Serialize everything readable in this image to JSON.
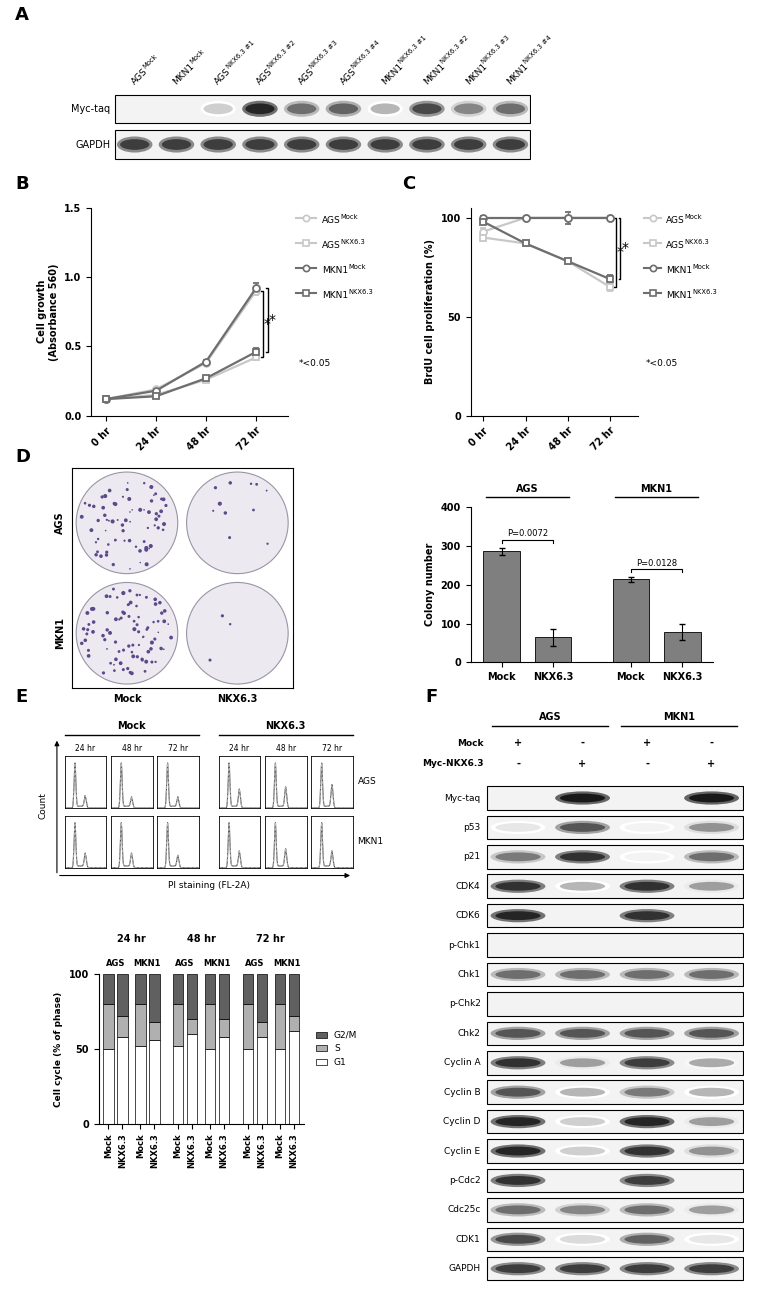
{
  "panel_A": {
    "label": "A",
    "lanes": [
      {
        "name": "AGS",
        "superscript": "Mock"
      },
      {
        "name": "MKN1",
        "superscript": "Mock"
      },
      {
        "name": "AGS",
        "superscript": "NKX6.3 #1"
      },
      {
        "name": "AGS",
        "superscript": "NKX6.3 #2"
      },
      {
        "name": "AGS",
        "superscript": "NKX6.3 #3"
      },
      {
        "name": "AGS",
        "superscript": "NKX6.3 #4"
      },
      {
        "name": "MKN1",
        "superscript": "NKX6.3 #1"
      },
      {
        "name": "MKN1",
        "superscript": "NKX6.3 #2"
      },
      {
        "name": "MKN1",
        "superscript": "NKX6.3 #3"
      },
      {
        "name": "MKN1",
        "superscript": "NKX6.3 #4"
      }
    ],
    "rows": [
      {
        "name": "Myc-taq",
        "intensity": [
          0,
          0,
          0.2,
          0.9,
          0.6,
          0.65,
          0.3,
          0.75,
          0.5,
          0.6
        ]
      },
      {
        "name": "GAPDH",
        "intensity": [
          0.8,
          0.8,
          0.8,
          0.8,
          0.8,
          0.8,
          0.8,
          0.8,
          0.8,
          0.8
        ]
      }
    ]
  },
  "chart_data": [
    {
      "panel": "B",
      "type": "line",
      "categories": [
        "0 hr",
        "24 hr",
        "48 hr",
        "72 hr"
      ],
      "y_label": "Cell growth\n(Absorbance 560)",
      "ylim": [
        0,
        1.5
      ],
      "yticks": [
        {
          "value": 0,
          "label": "0.0"
        },
        {
          "value": 0.5,
          "label": "0.5"
        },
        {
          "value": 1.0,
          "label": "1.0"
        },
        {
          "value": 1.5,
          "label": "1.5"
        }
      ],
      "series": [
        {
          "name": "AGS",
          "superscript": "Mock",
          "color": "#c8c8c8",
          "marker": "circle",
          "values": [
            0.12,
            0.19,
            0.38,
            0.9
          ],
          "errors": [
            0.005,
            0.01,
            0.01,
            0.03
          ]
        },
        {
          "name": "AGS",
          "superscript": "NKX6.3",
          "color": "#c8c8c8",
          "marker": "square",
          "values": [
            0.12,
            0.15,
            0.26,
            0.42
          ],
          "errors": [
            0.005,
            0.01,
            0.01,
            0.02
          ]
        },
        {
          "name": "MKN1",
          "superscript": "Mock",
          "color": "#6e6e6e",
          "marker": "circle",
          "values": [
            0.12,
            0.18,
            0.39,
            0.92
          ],
          "errors": [
            0.005,
            0.01,
            0.01,
            0.04
          ]
        },
        {
          "name": "MKN1",
          "superscript": "NKX6.3",
          "color": "#6e6e6e",
          "marker": "square",
          "values": [
            0.12,
            0.14,
            0.27,
            0.46
          ],
          "errors": [
            0.005,
            0.01,
            0.01,
            0.03
          ]
        }
      ],
      "significance": [
        {
          "category": "72 hr",
          "from": 0,
          "to": 1,
          "text": "*"
        },
        {
          "category": "72 hr",
          "from": 2,
          "to": 3,
          "text": "*"
        }
      ],
      "note": "*<0.05"
    },
    {
      "panel": "C",
      "type": "line",
      "categories": [
        "0 hr",
        "24 hr",
        "48 hr",
        "72 hr"
      ],
      "y_label": "BrdU cell proliferation (%)",
      "ylim": [
        0,
        105
      ],
      "yticks": [
        0,
        50,
        100
      ],
      "series": [
        {
          "name": "AGS",
          "superscript": "Mock",
          "color": "#c8c8c8",
          "marker": "circle",
          "values": [
            93,
            100,
            100,
            100
          ],
          "errors": [
            2,
            1,
            1,
            1
          ]
        },
        {
          "name": "AGS",
          "superscript": "NKX6.3",
          "color": "#c8c8c8",
          "marker": "square",
          "values": [
            90,
            87,
            78,
            65
          ],
          "errors": [
            2,
            1,
            1,
            2
          ]
        },
        {
          "name": "MKN1",
          "superscript": "Mock",
          "color": "#6e6e6e",
          "marker": "circle",
          "values": [
            100,
            100,
            100,
            100
          ],
          "errors": [
            1,
            1,
            3,
            1
          ]
        },
        {
          "name": "MKN1",
          "superscript": "NKX6.3",
          "color": "#6e6e6e",
          "marker": "square",
          "values": [
            98,
            87,
            78,
            69
          ],
          "errors": [
            1,
            1,
            1,
            2
          ]
        }
      ],
      "significance": [
        {
          "category": "72 hr",
          "from": 0,
          "to": 1,
          "text": "*"
        },
        {
          "category": "72 hr",
          "from": 2,
          "to": 3,
          "text": "*"
        }
      ],
      "note": "*<0.05"
    },
    {
      "type": "bar",
      "categories": [
        "Mock",
        "NKX6.3",
        "Mock",
        "NKX6.3"
      ],
      "values": [
        285,
        65,
        213,
        78
      ],
      "errors": [
        10,
        22,
        6,
        20
      ],
      "color": "#7f7f7f",
      "y_label": "Colony number",
      "ylim": [
        0,
        400
      ],
      "yticks": [
        0,
        100,
        200,
        300,
        400
      ],
      "groups": [
        {
          "name": "AGS",
          "bars": [
            0,
            1
          ]
        },
        {
          "name": "MKN1",
          "bars": [
            2,
            3
          ]
        }
      ],
      "annotations": [
        {
          "text": "P=0.0072",
          "between": [
            0,
            1
          ]
        },
        {
          "text": "P=0.0128",
          "between": [
            2,
            3
          ]
        }
      ]
    },
    {
      "type": "bar",
      "stacked": true,
      "categories": [
        "Mock",
        "NKX6.3",
        "Mock",
        "NKX6.3",
        "Mock",
        "NKX6.3",
        "Mock",
        "NKX6.3",
        "Mock",
        "NKX6.3",
        "Mock",
        "NKX6.3"
      ],
      "y_label": "Cell cycle (% of phase)",
      "ylim": [
        0,
        100
      ],
      "yticks": [
        0,
        50,
        100
      ],
      "legend": "right",
      "groups": [
        {
          "name": "24 hr",
          "bars": [
            0,
            1,
            2,
            3
          ]
        },
        {
          "name": "48 hr",
          "bars": [
            4,
            5,
            6,
            7
          ]
        },
        {
          "name": "72 hr",
          "bars": [
            8,
            9,
            10,
            11
          ]
        }
      ],
      "subgroups": [
        {
          "name": "AGS",
          "bars": [
            0,
            1
          ]
        },
        {
          "name": "MKN1",
          "bars": [
            2,
            3
          ]
        },
        {
          "name": "AGS",
          "bars": [
            4,
            5
          ]
        },
        {
          "name": "MKN1",
          "bars": [
            6,
            7
          ]
        },
        {
          "name": "AGS",
          "bars": [
            8,
            9
          ]
        },
        {
          "name": "MKN1",
          "bars": [
            10,
            11
          ]
        }
      ],
      "series": [
        {
          "name": "G1",
          "color": "#ffffff",
          "values": [
            50,
            58,
            52,
            56,
            52,
            60,
            50,
            58,
            50,
            58,
            50,
            62
          ]
        },
        {
          "name": "S",
          "color": "#b0b0b0",
          "values": [
            30,
            14,
            28,
            12,
            28,
            10,
            30,
            12,
            30,
            10,
            30,
            10
          ]
        },
        {
          "name": "G2/M",
          "color": "#606060",
          "values": [
            20,
            28,
            20,
            32,
            20,
            30,
            20,
            30,
            20,
            32,
            20,
            28
          ]
        }
      ]
    }
  ],
  "panel_D_images": {
    "label": "D",
    "rows": [
      "AGS",
      "MKN1"
    ],
    "columns": [
      "Mock",
      "NKX6.3"
    ],
    "colonies_shown": [
      [
        70,
        12
      ],
      [
        90,
        3
      ]
    ]
  },
  "panel_E_histograms": {
    "label": "E",
    "rows": [
      "AGS",
      "MKN1"
    ],
    "groups": [
      {
        "name": "Mock",
        "times": [
          "24 hr",
          "48 hr",
          "72 hr"
        ]
      },
      {
        "name": "NKX6.3",
        "times": [
          "24 hr",
          "48 hr",
          "72 hr"
        ]
      }
    ],
    "peaks": [
      [
        [
          1.0,
          0.25
        ],
        [
          1.0,
          0.22
        ],
        [
          1.0,
          0.22
        ],
        [
          1.0,
          0.4
        ],
        [
          1.0,
          0.45
        ],
        [
          1.0,
          0.5
        ]
      ],
      [
        [
          1.0,
          0.3
        ],
        [
          1.0,
          0.3
        ],
        [
          1.0,
          0.25
        ],
        [
          1.0,
          0.35
        ],
        [
          1.0,
          0.4
        ],
        [
          1.0,
          0.35
        ]
      ]
    ],
    "y_label": "Count",
    "x_label": "PI staining (FL-2A)"
  },
  "panel_F": {
    "label": "F",
    "groups": [
      {
        "name": "AGS",
        "lanes": [
          0,
          1
        ]
      },
      {
        "name": "MKN1",
        "lanes": [
          2,
          3
        ]
      }
    ],
    "conditions": [
      {
        "name": "Mock",
        "signs": [
          "+",
          "-",
          "+",
          "-"
        ]
      },
      {
        "name": "Myc-NKX6.3",
        "signs": [
          "-",
          "+",
          "-",
          "+"
        ]
      }
    ],
    "rows": [
      {
        "name": "Myc-taq",
        "intensity": [
          0,
          0.95,
          0,
          0.95
        ]
      },
      {
        "name": "p53",
        "intensity": [
          0.1,
          0.7,
          0.05,
          0.45
        ]
      },
      {
        "name": "p21",
        "intensity": [
          0.55,
          0.85,
          0.05,
          0.6
        ]
      },
      {
        "name": "CDK4",
        "intensity": [
          0.85,
          0.3,
          0.85,
          0.4
        ]
      },
      {
        "name": "CDK6",
        "intensity": [
          0.9,
          0,
          0.85,
          0
        ]
      },
      {
        "name": "p-Chk1",
        "intensity": [
          0,
          0,
          0,
          0
        ]
      },
      {
        "name": "Chk1",
        "intensity": [
          0.6,
          0.6,
          0.6,
          0.6
        ]
      },
      {
        "name": "p-Chk2",
        "intensity": [
          0,
          0,
          0,
          0
        ]
      },
      {
        "name": "Chk2",
        "intensity": [
          0.7,
          0.7,
          0.7,
          0.7
        ]
      },
      {
        "name": "Cyclin A",
        "intensity": [
          0.85,
          0.4,
          0.8,
          0.35
        ]
      },
      {
        "name": "Cyclin B",
        "intensity": [
          0.7,
          0.3,
          0.55,
          0.3
        ]
      },
      {
        "name": "Cyclin D",
        "intensity": [
          0.9,
          0.2,
          0.9,
          0.4
        ]
      },
      {
        "name": "Cyclin E",
        "intensity": [
          0.9,
          0.2,
          0.85,
          0.45
        ]
      },
      {
        "name": "p-Cdc2",
        "intensity": [
          0.85,
          0,
          0.8,
          0
        ]
      },
      {
        "name": "Cdc25c",
        "intensity": [
          0.6,
          0.5,
          0.6,
          0.4
        ]
      },
      {
        "name": "CDK1",
        "intensity": [
          0.75,
          0.15,
          0.65,
          0.1
        ]
      },
      {
        "name": "GAPDH",
        "intensity": [
          0.8,
          0.8,
          0.8,
          0.8
        ]
      }
    ]
  }
}
